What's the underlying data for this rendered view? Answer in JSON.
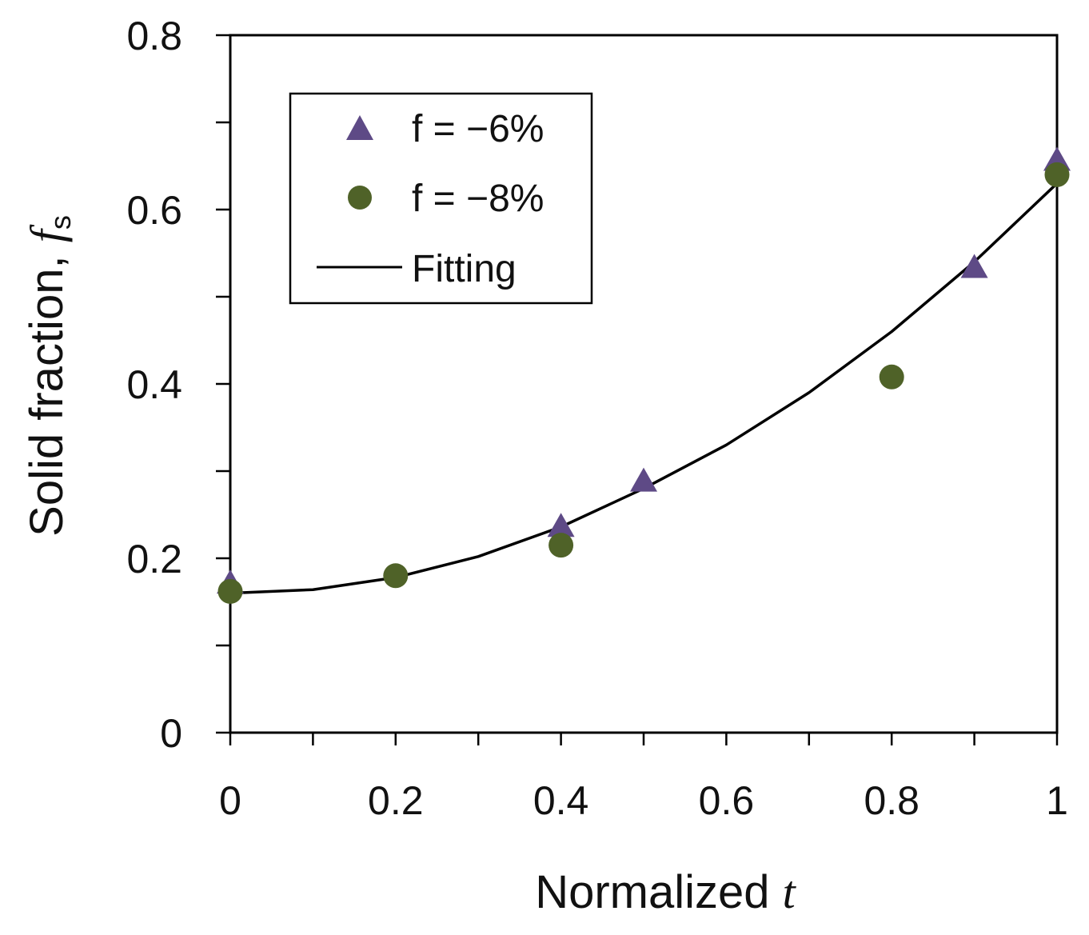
{
  "chart_data": {
    "type": "scatter",
    "title": "",
    "xlabel": "Normalized",
    "xlabel_var": "t",
    "ylabel": "Solid fraction,",
    "ylabel_var": "f",
    "ylabel_sub": "s",
    "xlim": [
      0,
      1
    ],
    "ylim": [
      0,
      0.8
    ],
    "x_ticks": [
      0,
      0.2,
      0.4,
      0.6,
      0.8,
      1
    ],
    "x_tick_labels": [
      "0",
      "0.2",
      "0.4",
      "0.6",
      "0.8",
      "1"
    ],
    "x_minor_ticks": [
      0.1,
      0.3,
      0.5,
      0.7,
      0.9
    ],
    "y_ticks": [
      0,
      0.2,
      0.4,
      0.6,
      0.8
    ],
    "y_tick_labels": [
      "0",
      "0.2",
      "0.4",
      "0.6",
      "0.8"
    ],
    "y_minor_ticks": [
      0.1,
      0.3,
      0.5,
      0.7
    ],
    "grid": false,
    "legend_position": "top-left",
    "series": [
      {
        "name": "f = −6%",
        "marker": "triangle",
        "color": "#5e4a86",
        "x": [
          0,
          0.4,
          0.5,
          0.9,
          1
        ],
        "y": [
          0.17,
          0.235,
          0.287,
          0.532,
          0.655
        ]
      },
      {
        "name": "f = −8%",
        "marker": "circle",
        "color": "#4f6228",
        "x": [
          0,
          0.2,
          0.4,
          0.8,
          1
        ],
        "y": [
          0.162,
          0.18,
          0.215,
          0.408,
          0.64
        ]
      },
      {
        "name": "Fitting",
        "marker": "line",
        "color": "#000000",
        "x": [
          0,
          0.1,
          0.2,
          0.3,
          0.4,
          0.5,
          0.6,
          0.7,
          0.8,
          0.9,
          1
        ],
        "y": [
          0.16,
          0.164,
          0.178,
          0.202,
          0.236,
          0.28,
          0.33,
          0.39,
          0.46,
          0.54,
          0.63
        ]
      }
    ]
  }
}
